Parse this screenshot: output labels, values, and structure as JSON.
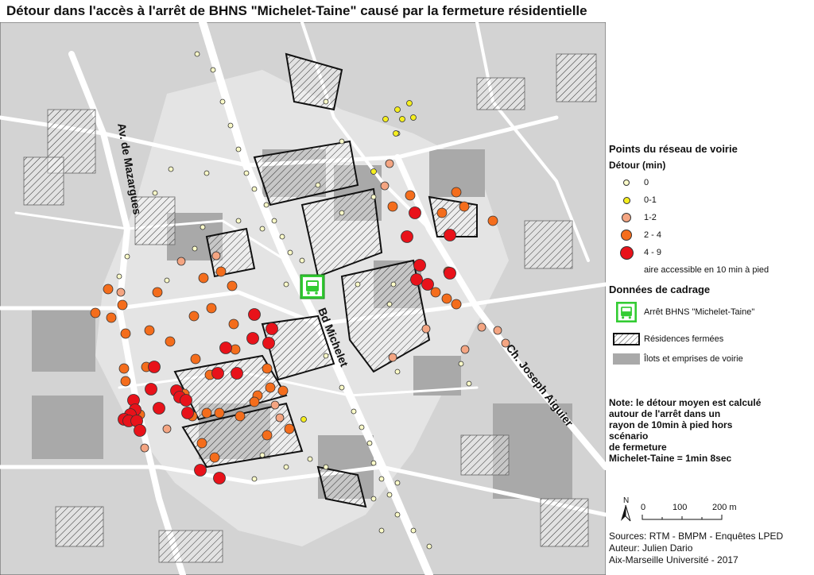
{
  "title": "Détour dans l'accès à l'arrêt de BHNS \"Michelet-Taine\" causé par la fermeture résidentielle",
  "map": {
    "street_labels": [
      "Av. de Mazargues",
      "Bd Michelet",
      "Ch. Joseph Aiguier"
    ],
    "bus_stop_icon": "bus-icon",
    "colors": {
      "background": "#d3d3d3",
      "islands": "#a9a9a9",
      "walk_area": "#e6e6e6",
      "roads": "#ffffff",
      "stop": "#33cc33"
    }
  },
  "legend": {
    "network_title": "Points du réseau de voirie",
    "detour_title": "Détour (min)",
    "classes": [
      {
        "label": "0",
        "color": "#fbfbc8"
      },
      {
        "label": "0-1",
        "color": "#f5ee1e"
      },
      {
        "label": "1-2",
        "color": "#f4a582"
      },
      {
        "label": "2 - 4",
        "color": "#f46d1c"
      },
      {
        "label": "4 - 9",
        "color": "#e8121a"
      }
    ],
    "walk_area_label": "aire accessible en 10 min à pied",
    "frame_title": "Données de cadrage",
    "stop_label": "Arrêt BHNS \"Michelet-Taine\"",
    "gated_label": "Résidences fermées",
    "islands_label": "Îlots et emprises de voirie"
  },
  "note": [
    "Note: le détour moyen est calculé",
    "autour de l'arrêt dans un",
    "rayon de 10min à pied hors scénario",
    "de fermeture",
    "Michelet-Taine = 1min 8sec"
  ],
  "scale": {
    "north": "N",
    "ticks": [
      "0",
      "100",
      "200 m"
    ]
  },
  "sources": [
    "Sources: RTM - BMPM - Enquêtes LPED",
    "Auteur: Julien Dario",
    "Aix-Marseille Université - 2017"
  ]
}
